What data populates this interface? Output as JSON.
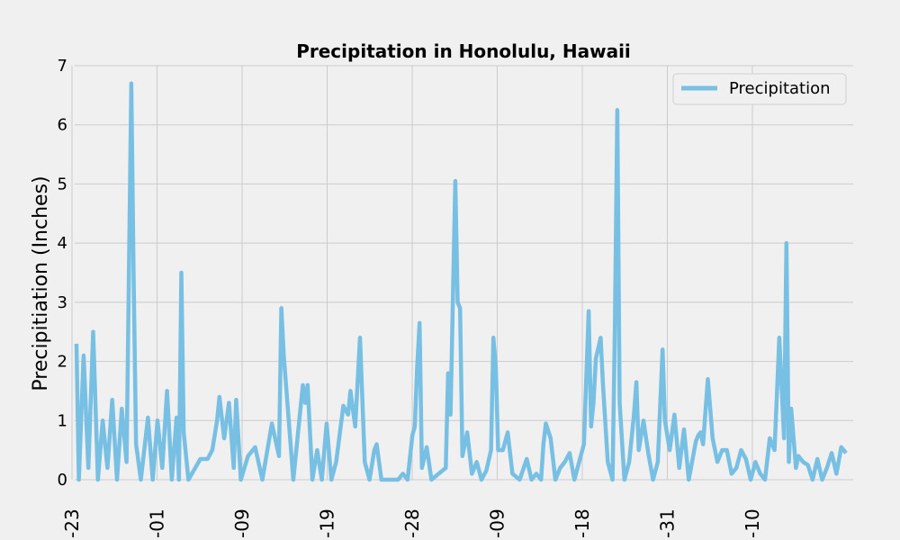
{
  "chart_data": {
    "type": "line",
    "title": "Precipitation in Honolulu, Hawaii",
    "xlabel": "",
    "ylabel": "Precipitiation (Inches)",
    "ylim": [
      0,
      7
    ],
    "yticks": [
      "0",
      "1",
      "2",
      "3",
      "4",
      "5",
      "6",
      "7"
    ],
    "xticks": [
      "-23",
      "-01",
      "-09",
      "-19",
      "-28",
      "-09",
      "-18",
      "-31",
      "-10"
    ],
    "grid": true,
    "legend_position": "top-right",
    "color": "#77bfe3",
    "series": [
      {
        "name": "Precipitation",
        "peaks": [
          [
            0,
            2.3
          ],
          [
            1,
            0.0
          ],
          [
            3,
            2.1
          ],
          [
            5,
            0.2
          ],
          [
            7,
            2.5
          ],
          [
            9,
            0.0
          ],
          [
            11,
            1.0
          ],
          [
            13,
            0.2
          ],
          [
            15,
            1.35
          ],
          [
            17,
            0.0
          ],
          [
            19,
            1.2
          ],
          [
            21,
            0.3
          ],
          [
            23,
            6.7
          ],
          [
            24,
            3.4
          ],
          [
            25,
            0.6
          ],
          [
            27,
            0.0
          ],
          [
            30,
            1.05
          ],
          [
            32,
            0.0
          ],
          [
            34,
            1.0
          ],
          [
            36,
            0.2
          ],
          [
            38,
            1.5
          ],
          [
            40,
            0.0
          ],
          [
            42,
            1.05
          ],
          [
            43,
            0.0
          ],
          [
            44,
            3.5
          ],
          [
            45,
            0.8
          ],
          [
            47,
            0.0
          ],
          [
            52,
            0.35
          ],
          [
            55,
            0.35
          ],
          [
            57,
            0.5
          ],
          [
            59,
            1.0
          ],
          [
            60,
            1.4
          ],
          [
            62,
            0.7
          ],
          [
            64,
            1.3
          ],
          [
            66,
            0.2
          ],
          [
            67,
            1.35
          ],
          [
            69,
            0.0
          ],
          [
            72,
            0.4
          ],
          [
            75,
            0.55
          ],
          [
            78,
            0.0
          ],
          [
            82,
            0.95
          ],
          [
            85,
            0.4
          ],
          [
            86,
            2.9
          ],
          [
            87,
            2.1
          ],
          [
            89,
            1.05
          ],
          [
            91,
            0.0
          ],
          [
            93,
            0.8
          ],
          [
            95,
            1.6
          ],
          [
            96,
            1.3
          ],
          [
            97,
            1.6
          ],
          [
            99,
            0.0
          ],
          [
            101,
            0.5
          ],
          [
            103,
            0.0
          ],
          [
            105,
            0.95
          ],
          [
            107,
            0.0
          ],
          [
            109,
            0.3
          ],
          [
            112,
            1.25
          ],
          [
            114,
            1.1
          ],
          [
            115,
            1.5
          ],
          [
            117,
            0.9
          ],
          [
            119,
            2.4
          ],
          [
            121,
            0.3
          ],
          [
            123,
            0.0
          ],
          [
            125,
            0.5
          ],
          [
            126,
            0.6
          ],
          [
            128,
            0.0
          ],
          [
            135,
            0.0
          ],
          [
            137,
            0.1
          ],
          [
            139,
            0.0
          ],
          [
            141,
            0.75
          ],
          [
            142,
            0.9
          ],
          [
            143,
            1.9
          ],
          [
            144,
            2.65
          ],
          [
            145,
            0.2
          ],
          [
            147,
            0.55
          ],
          [
            149,
            0.0
          ],
          [
            155,
            0.2
          ],
          [
            156,
            1.8
          ],
          [
            157,
            1.1
          ],
          [
            159,
            5.05
          ],
          [
            160,
            3.0
          ],
          [
            161,
            2.9
          ],
          [
            162,
            0.4
          ],
          [
            164,
            0.8
          ],
          [
            166,
            0.1
          ],
          [
            168,
            0.3
          ],
          [
            170,
            0.0
          ],
          [
            172,
            0.15
          ],
          [
            174,
            0.5
          ],
          [
            175,
            2.4
          ],
          [
            176,
            1.9
          ],
          [
            177,
            0.5
          ],
          [
            179,
            0.5
          ],
          [
            181,
            0.8
          ],
          [
            183,
            0.1
          ],
          [
            186,
            0.0
          ],
          [
            189,
            0.35
          ],
          [
            191,
            0.0
          ],
          [
            193,
            0.1
          ],
          [
            195,
            0.0
          ],
          [
            196,
            0.6
          ],
          [
            197,
            0.95
          ],
          [
            199,
            0.7
          ],
          [
            201,
            0.0
          ],
          [
            203,
            0.2
          ],
          [
            205,
            0.3
          ],
          [
            207,
            0.45
          ],
          [
            209,
            0.0
          ],
          [
            213,
            0.6
          ],
          [
            215,
            2.85
          ],
          [
            216,
            0.9
          ],
          [
            217,
            1.3
          ],
          [
            218,
            2.05
          ],
          [
            220,
            2.4
          ],
          [
            221,
            1.6
          ],
          [
            223,
            0.3
          ],
          [
            225,
            0.0
          ],
          [
            226,
            2.6
          ],
          [
            227,
            6.25
          ],
          [
            228,
            1.3
          ],
          [
            230,
            0.0
          ],
          [
            232,
            0.3
          ],
          [
            234,
            1.1
          ],
          [
            235,
            1.65
          ],
          [
            236,
            0.5
          ],
          [
            238,
            1.0
          ],
          [
            240,
            0.45
          ],
          [
            242,
            0.0
          ],
          [
            244,
            0.3
          ],
          [
            246,
            2.2
          ],
          [
            247,
            1.0
          ],
          [
            249,
            0.5
          ],
          [
            251,
            1.1
          ],
          [
            253,
            0.2
          ],
          [
            255,
            0.85
          ],
          [
            257,
            0.0
          ],
          [
            260,
            0.65
          ],
          [
            261,
            0.75
          ],
          [
            262,
            0.8
          ],
          [
            263,
            0.6
          ],
          [
            265,
            1.7
          ],
          [
            267,
            0.7
          ],
          [
            269,
            0.3
          ],
          [
            271,
            0.5
          ],
          [
            273,
            0.5
          ],
          [
            275,
            0.1
          ],
          [
            277,
            0.2
          ],
          [
            279,
            0.5
          ],
          [
            281,
            0.35
          ],
          [
            283,
            0.0
          ],
          [
            285,
            0.3
          ],
          [
            287,
            0.1
          ],
          [
            289,
            0.0
          ],
          [
            291,
            0.7
          ],
          [
            293,
            0.5
          ],
          [
            295,
            2.4
          ],
          [
            297,
            0.7
          ],
          [
            298,
            4.0
          ],
          [
            299,
            0.3
          ],
          [
            300,
            1.2
          ],
          [
            302,
            0.2
          ],
          [
            303,
            0.4
          ],
          [
            305,
            0.3
          ],
          [
            307,
            0.25
          ],
          [
            309,
            0.0
          ],
          [
            311,
            0.35
          ],
          [
            313,
            0.0
          ],
          [
            315,
            0.2
          ],
          [
            317,
            0.45
          ],
          [
            319,
            0.1
          ],
          [
            321,
            0.55
          ],
          [
            322,
            0.5
          ],
          [
            323,
            0.45
          ]
        ]
      }
    ]
  }
}
